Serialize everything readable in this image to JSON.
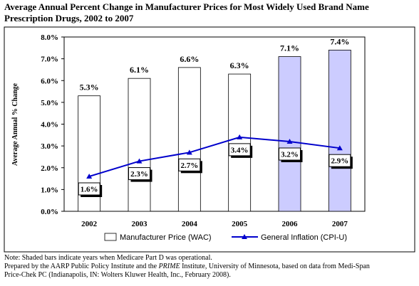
{
  "title_line1": "Average Annual Percent Change in Manufacturer Prices for Most Widely Used Brand Name",
  "title_line2": "Prescription Drugs, 2002 to 2007",
  "notes": {
    "line1": "Note: Shaded bars indicate years when Medicare Part D was operational.",
    "line2_a": "Prepared by the AARP Public Policy Institute and the ",
    "line2_b": "PRIME",
    "line2_c": " Institute, University of Minnesota, based on data from Medi-Span",
    "line3": "Price-Chek PC (Indianapolis, IN: Wolters Kluwer Health, Inc., February 2008)."
  },
  "colors": {
    "bar_default": "#ffffff",
    "bar_shaded": "#ccccff",
    "line": "#0000cc"
  },
  "chart_data": {
    "type": "bar",
    "title": "Average Annual Percent Change in Manufacturer Prices for Most Widely Used Brand Name Prescription Drugs, 2002 to 2007",
    "ylabel": "Average Annual % Change",
    "xlabel": "",
    "ylim": [
      0,
      8
    ],
    "yticks": [
      "0.0%",
      "1.0%",
      "2.0%",
      "3.0%",
      "4.0%",
      "5.0%",
      "6.0%",
      "7.0%",
      "8.0%"
    ],
    "categories": [
      "2002",
      "2003",
      "2004",
      "2005",
      "2006",
      "2007"
    ],
    "shaded": [
      false,
      false,
      false,
      false,
      true,
      true
    ],
    "series": [
      {
        "name": "Manufacturer Price (WAC)",
        "type": "bar",
        "values": [
          5.3,
          6.1,
          6.6,
          6.3,
          7.1,
          7.4
        ],
        "labels": [
          "5.3%",
          "6.1%",
          "6.6%",
          "6.3%",
          "7.1%",
          "7.4%"
        ]
      },
      {
        "name": "General Inflation (CPI-U)",
        "type": "line",
        "values": [
          1.6,
          2.3,
          2.7,
          3.4,
          3.2,
          2.9
        ],
        "labels": [
          "1.6%",
          "2.3%",
          "2.7%",
          "3.4%",
          "3.2%",
          "2.9%"
        ]
      }
    ],
    "legend_position": "bottom",
    "grid": false
  }
}
